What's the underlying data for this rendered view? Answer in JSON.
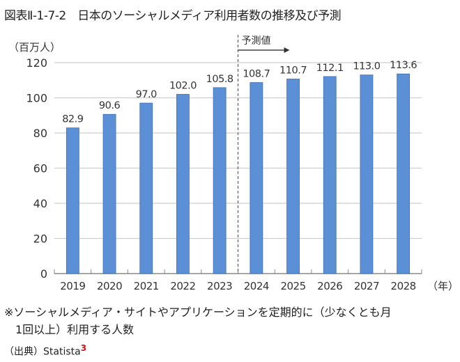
{
  "title": "図表Ⅱ-1-7-2　日本のソーシャルメディア利用者数の推移及び予測",
  "note_line1": "※ソーシャルメディア・サイトやアプリケーションを定期的に（少なくとも月",
  "note_line2": "1回以上）利用する人数",
  "source_label": "（出典）Statista",
  "source_ref": "3",
  "chart_data": {
    "type": "bar",
    "title": "日本のソーシャルメディア利用者数の推移及び予測",
    "ylabel": "（百万人）",
    "xlabel": "（年）",
    "ylim": [
      0,
      120
    ],
    "yticks": [
      0,
      20,
      40,
      60,
      80,
      100,
      120
    ],
    "grid": true,
    "categories": [
      "2019",
      "2020",
      "2021",
      "2022",
      "2023",
      "2024",
      "2025",
      "2026",
      "2027",
      "2028"
    ],
    "values": [
      82.9,
      90.6,
      97.0,
      102.0,
      105.8,
      108.7,
      110.7,
      112.1,
      113.0,
      113.6
    ],
    "value_labels": [
      "82.9",
      "90.6",
      "97.0",
      "102.0",
      "105.8",
      "108.7",
      "110.7",
      "112.1",
      "113.0",
      "113.6"
    ],
    "forecast_start": "2024",
    "forecast_label": "予測値",
    "bar_color": "#5b8fd6"
  }
}
